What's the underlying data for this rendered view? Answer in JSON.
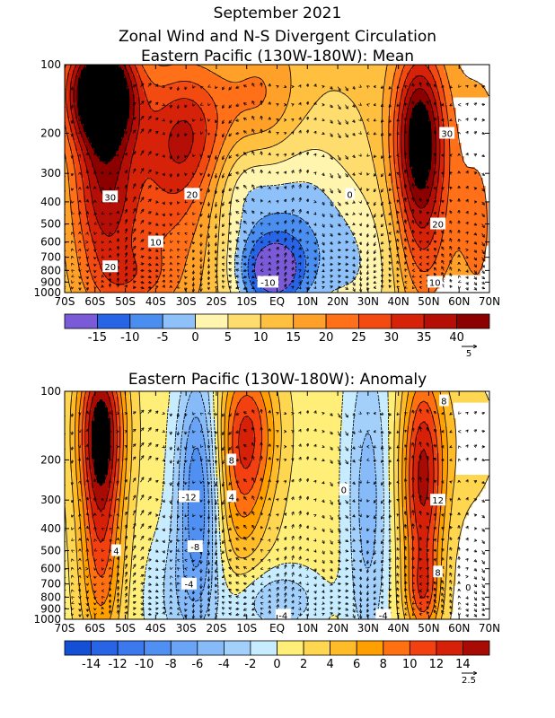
{
  "figure": {
    "suptitle": "September 2021",
    "title_line2": "Zonal Wind and N-S Divergent Circulation"
  },
  "chart_data": [
    {
      "type": "heatmap",
      "title": "Eastern Pacific (130W-180W): Mean",
      "x_ticks": [
        "70S",
        "60S",
        "50S",
        "40S",
        "30S",
        "20S",
        "10S",
        "EQ",
        "10N",
        "20N",
        "30N",
        "40N",
        "50N",
        "60N",
        "70N"
      ],
      "y_ticks": [
        "100",
        "200",
        "300",
        "400",
        "500",
        "600",
        "700",
        "800",
        "900",
        "1000"
      ],
      "y_scale": "log",
      "xlim": [
        -70,
        70
      ],
      "ylim": [
        1000,
        100
      ],
      "colorbar_ticks": [
        "-15",
        "-10",
        "-5",
        "0",
        "5",
        "10",
        "15",
        "20",
        "25",
        "30",
        "35",
        "40"
      ],
      "colorbar_colors": [
        "#7a5ad6",
        "#2864e6",
        "#4a8ef0",
        "#8ec0fa",
        "#fff5ae",
        "#ffdc6e",
        "#ffc040",
        "#ffa028",
        "#ff7018",
        "#f24a10",
        "#d62208",
        "#b40e06",
        "#8c0000"
      ],
      "contour_labels": [
        {
          "text": "30",
          "lat": 56,
          "p": 200
        },
        {
          "text": "20",
          "lat": 53,
          "p": 500
        },
        {
          "text": "10",
          "lat": 52,
          "p": 900
        },
        {
          "text": "30",
          "lat": -55,
          "p": 380
        },
        {
          "text": "20",
          "lat": -55,
          "p": 770
        },
        {
          "text": "20",
          "lat": -28,
          "p": 370
        },
        {
          "text": "10",
          "lat": -40,
          "p": 600
        },
        {
          "text": "0",
          "lat": 24,
          "p": 370
        },
        {
          "text": "-10",
          "lat": -3,
          "p": 900
        }
      ],
      "vector_reference": "5"
    },
    {
      "type": "heatmap",
      "title": "Eastern Pacific (130W-180W): Anomaly",
      "x_ticks": [
        "70S",
        "60S",
        "50S",
        "40S",
        "30S",
        "20S",
        "10S",
        "EQ",
        "10N",
        "20N",
        "30N",
        "40N",
        "50N",
        "60N",
        "70N"
      ],
      "y_ticks": [
        "100",
        "200",
        "300",
        "400",
        "500",
        "600",
        "700",
        "800",
        "900",
        "1000"
      ],
      "y_scale": "log",
      "xlim": [
        -70,
        70
      ],
      "ylim": [
        1000,
        100
      ],
      "colorbar_ticks": [
        "-14",
        "-12",
        "-10",
        "-8",
        "-6",
        "-4",
        "-2",
        "0",
        "2",
        "4",
        "6",
        "8",
        "10",
        "12",
        "14"
      ],
      "colorbar_colors": [
        "#1450d6",
        "#2864e6",
        "#3c78ee",
        "#5090f2",
        "#6aa4f6",
        "#86baf8",
        "#a2d0fa",
        "#c8ecff",
        "#ffee78",
        "#ffd650",
        "#ffbc28",
        "#ffa000",
        "#ff7010",
        "#f24010",
        "#d62008",
        "#a80a04"
      ],
      "contour_labels": [
        {
          "text": "8",
          "lat": 55,
          "p": 110
        },
        {
          "text": "12",
          "lat": 53,
          "p": 300
        },
        {
          "text": "8",
          "lat": 53,
          "p": 620
        },
        {
          "text": "8",
          "lat": -15,
          "p": 200
        },
        {
          "text": "4",
          "lat": -15,
          "p": 290
        },
        {
          "text": "0",
          "lat": 22,
          "p": 270
        },
        {
          "text": "-12",
          "lat": -29,
          "p": 290
        },
        {
          "text": "-8",
          "lat": -27,
          "p": 480
        },
        {
          "text": "-4",
          "lat": -29,
          "p": 700
        },
        {
          "text": "4",
          "lat": -53,
          "p": 500
        },
        {
          "text": "-4",
          "lat": 2,
          "p": 960
        },
        {
          "text": "-4",
          "lat": 35,
          "p": 960
        },
        {
          "text": "0",
          "lat": 63,
          "p": 720
        }
      ],
      "vector_reference": "2.5"
    }
  ]
}
